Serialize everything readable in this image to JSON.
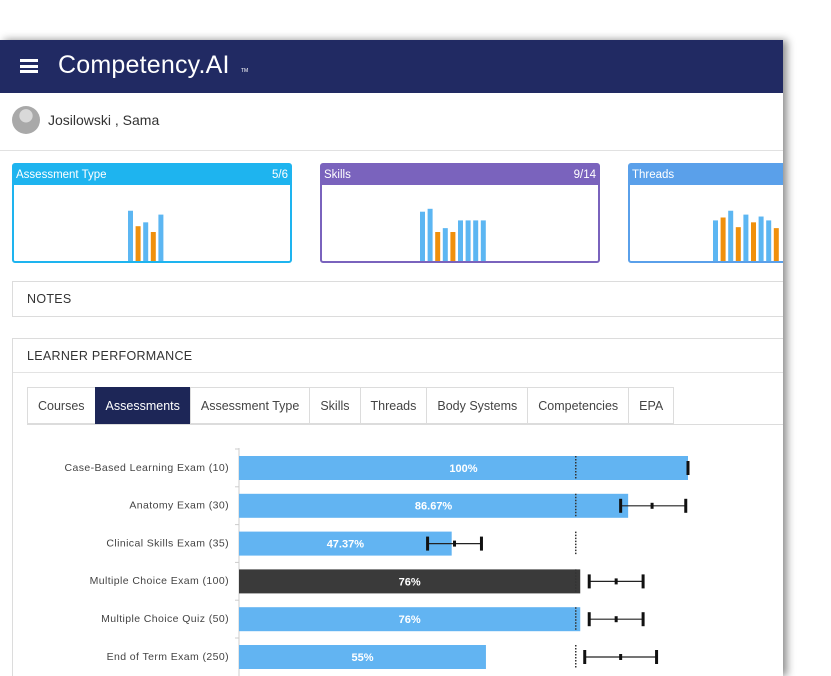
{
  "header": {
    "brand": "Competency.AI",
    "trademark": "TM"
  },
  "user": {
    "name": "Josilowski , Sama"
  },
  "cards": [
    {
      "title": "Assessment Type",
      "count": "5/6",
      "color": "#1eb4ef",
      "ylim": [
        0,
        60
      ],
      "values": [
        52,
        36,
        40,
        30,
        48
      ],
      "colors": [
        "#5cb6f2",
        "#f0900c",
        "#5cb6f2",
        "#f0900c",
        "#5cb6f2"
      ]
    },
    {
      "title": "Skills",
      "count": "9/14",
      "color": "#7a63bd",
      "ylim": [
        0,
        60
      ],
      "values": [
        51,
        54,
        30,
        34,
        30,
        42,
        42,
        42,
        42
      ],
      "colors": [
        "#5cb6f2",
        "#5cb6f2",
        "#f0900c",
        "#5cb6f2",
        "#f0900c",
        "#5cb6f2",
        "#5cb6f2",
        "#5cb6f2",
        "#5cb6f2"
      ]
    },
    {
      "title": "Threads",
      "count": "",
      "color": "#5aa0ea",
      "ylim": [
        0,
        60
      ],
      "values": [
        42,
        45,
        52,
        35,
        48,
        40,
        46,
        42,
        34
      ],
      "colors": [
        "#5cb6f2",
        "#f0900c",
        "#5cb6f2",
        "#f0900c",
        "#5cb6f2",
        "#f0900c",
        "#5cb6f2",
        "#5cb6f2",
        "#f0900c"
      ]
    }
  ],
  "notes": {
    "title": "NOTES"
  },
  "performance": {
    "title": "LEARNER PERFORMANCE"
  },
  "tabs": {
    "items": [
      "Courses",
      "Assessments",
      "Assessment Type",
      "Skills",
      "Threads",
      "Body Systems",
      "Competencies",
      "EPA"
    ],
    "active": 1
  },
  "chart_data": {
    "type": "hbar",
    "categories": [
      "Case-Based Learning Exam (10)",
      "Anatomy Exam (30)",
      "Clinical Skills Exam (35)",
      "Multiple Choice Exam (100)",
      "Multiple Choice Quiz (50)",
      "End of Term Exam (250)"
    ],
    "values": [
      100,
      86.67,
      47.37,
      76,
      76,
      55
    ],
    "value_labels": [
      "100%",
      "86.67%",
      "47.37%",
      "76%",
      "76%",
      "55%"
    ],
    "colors": [
      "#62b4f2",
      "#62b4f2",
      "#62b4f2",
      "#3a3a3a",
      "#62b4f2",
      "#62b4f2"
    ],
    "range_low": [
      100,
      85,
      42,
      78,
      78,
      77
    ],
    "range_mid": [
      100,
      92,
      48,
      84,
      84,
      85
    ],
    "range_high": [
      100,
      99.5,
      54,
      90,
      90,
      93
    ],
    "reference": 75,
    "xlim": [
      0,
      100
    ]
  }
}
